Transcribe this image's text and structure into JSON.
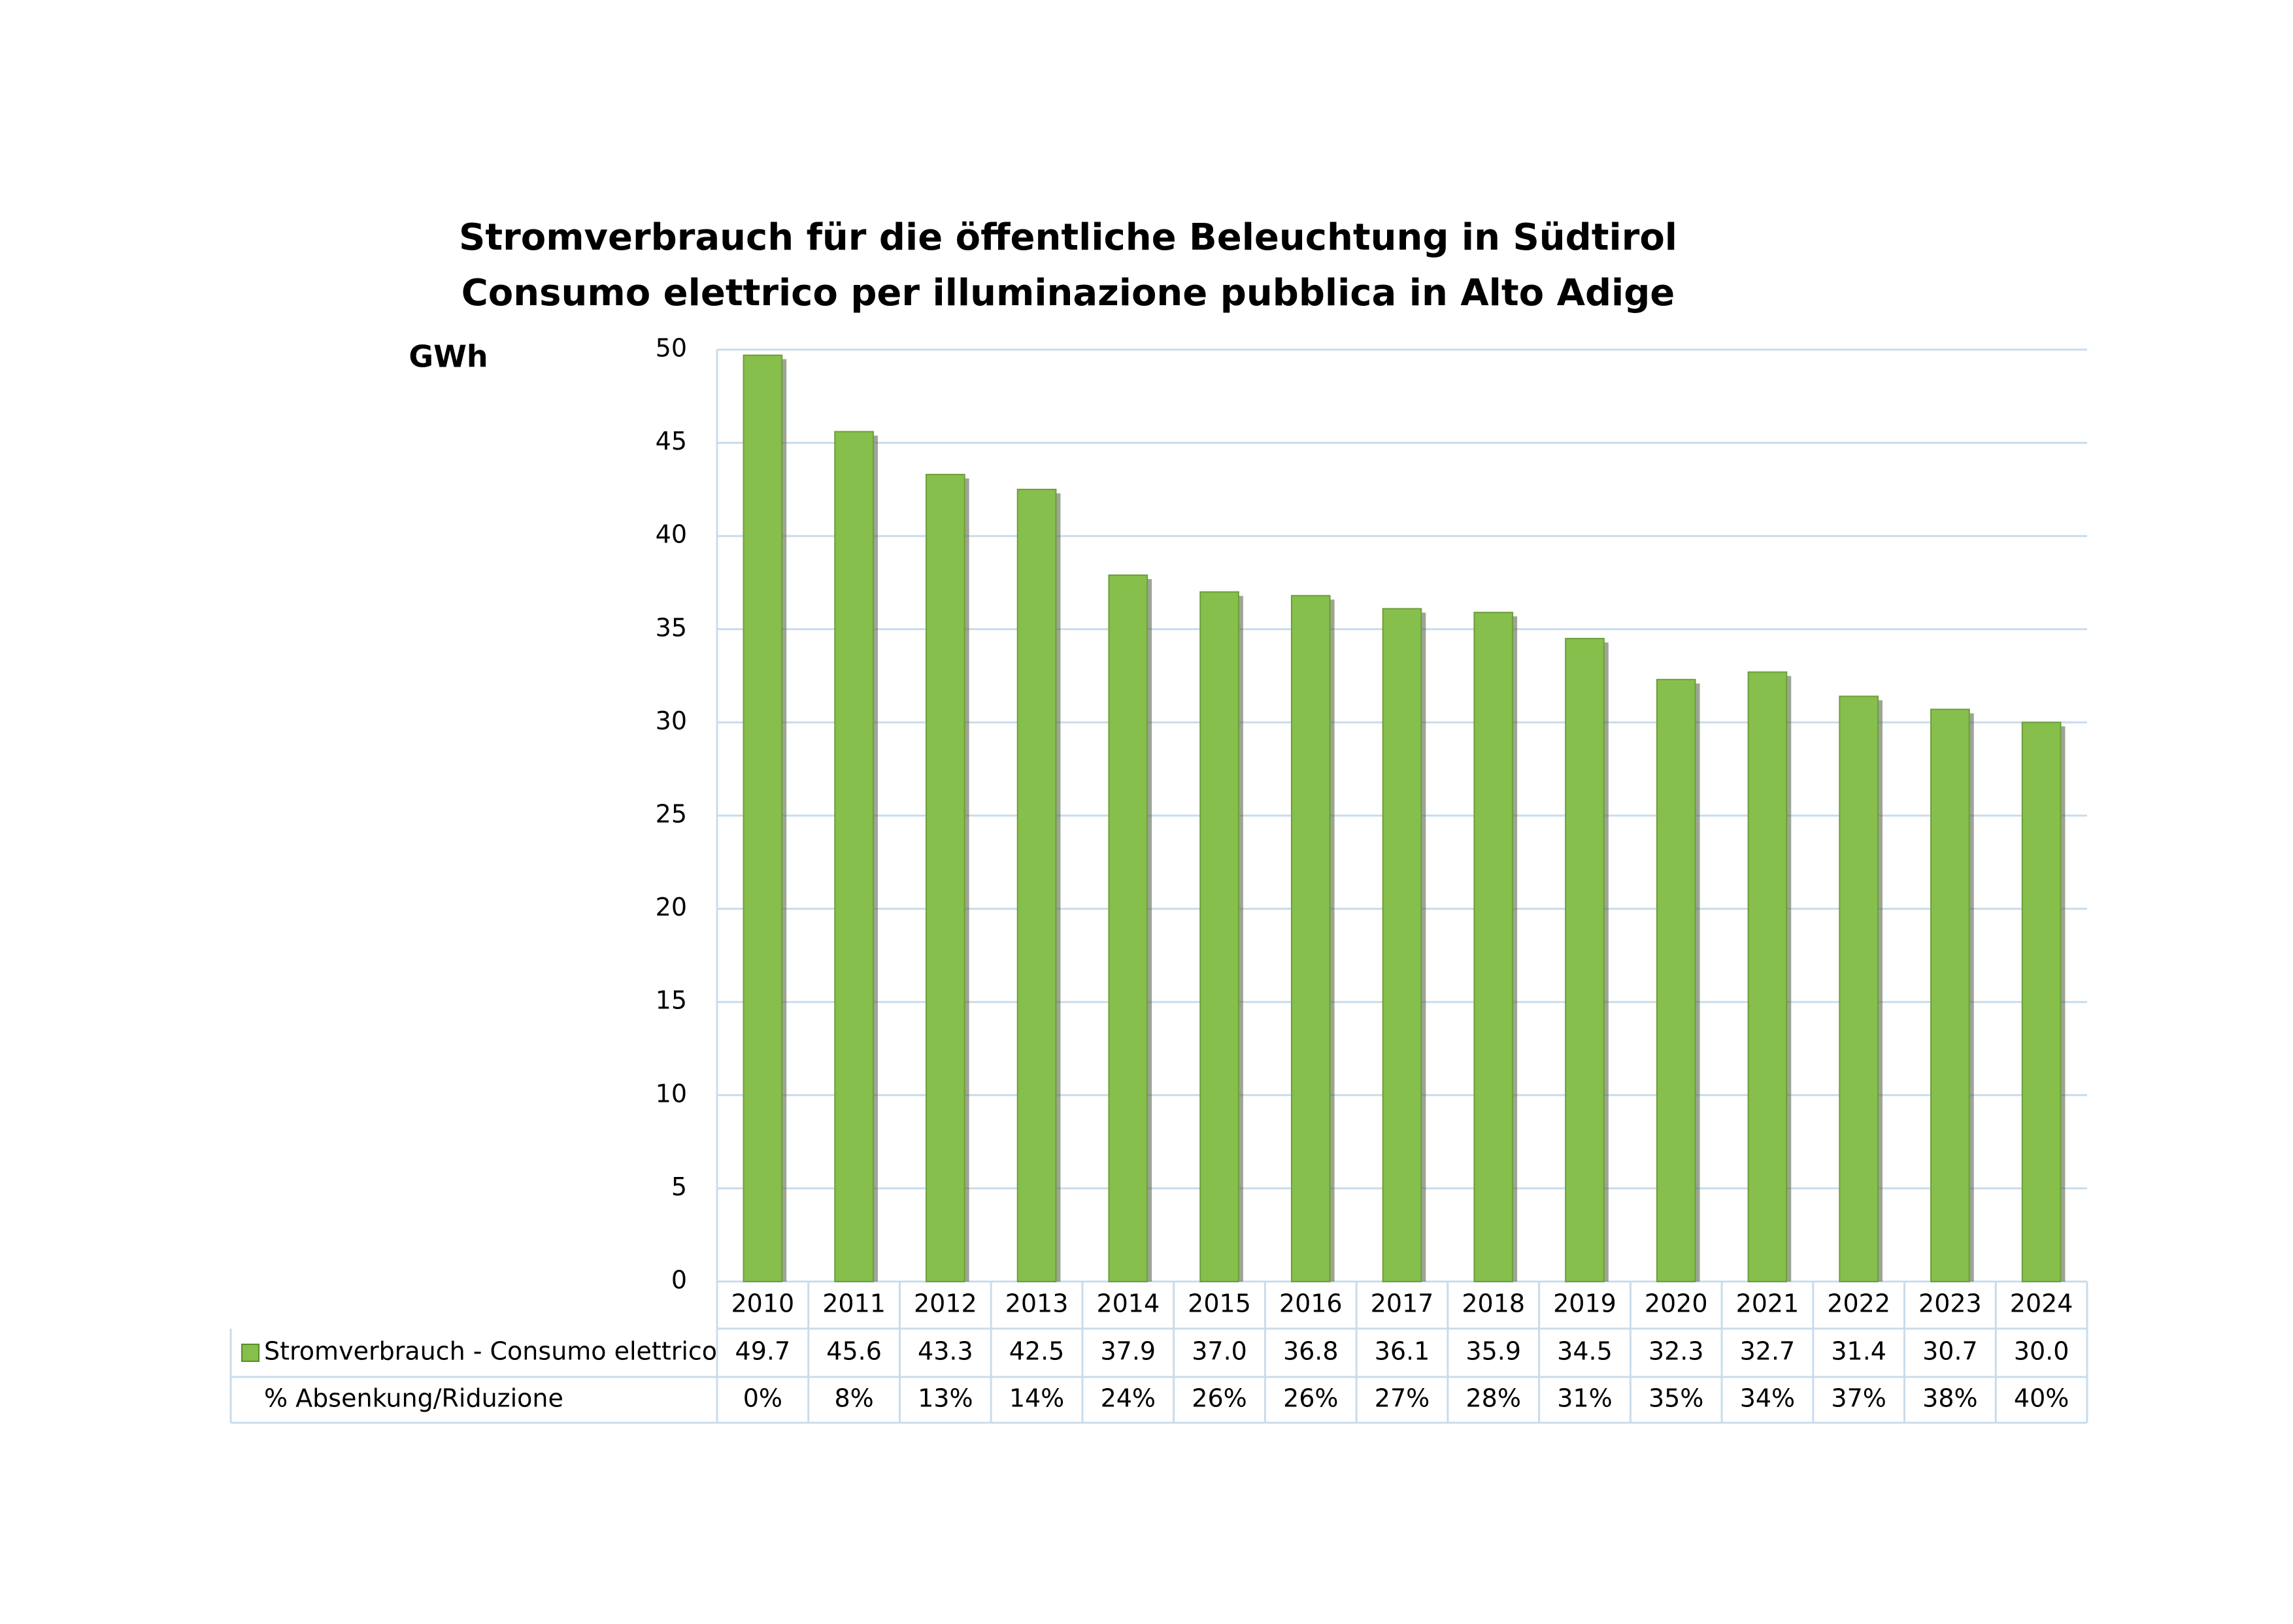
{
  "chart_data": {
    "type": "bar",
    "title": [
      "Stromverbrauch für die öffentliche Beleuchtung in Südtirol",
      "Consumo elettrico per illuminazione pubblica in Alto Adige"
    ],
    "y_label": "GWh",
    "categories": [
      "2010",
      "2011",
      "2012",
      "2013",
      "2014",
      "2015",
      "2016",
      "2017",
      "2018",
      "2019",
      "2020",
      "2021",
      "2022",
      "2023",
      "2024"
    ],
    "series": [
      {
        "name": "Stromverbrauch - Consumo elettrico",
        "color": "#86bf4b",
        "values": [
          49.7,
          45.6,
          43.3,
          42.5,
          37.9,
          37.0,
          36.8,
          36.1,
          35.9,
          34.5,
          32.3,
          32.7,
          31.4,
          30.7,
          30.0
        ],
        "value_labels": [
          "49.7",
          "45.6",
          "43.3",
          "42.5",
          "37.9",
          "37.0",
          "36.8",
          "36.1",
          "35.9",
          "34.5",
          "32.3",
          "32.7",
          "31.4",
          "30.7",
          "30.0"
        ]
      }
    ],
    "reduction": {
      "name": "% Absenkung/Riduzione",
      "values": [
        0,
        8,
        13,
        14,
        24,
        26,
        26,
        27,
        28,
        31,
        35,
        34,
        37,
        38,
        40
      ],
      "value_labels": [
        "0%",
        "8%",
        "13%",
        "14%",
        "24%",
        "26%",
        "26%",
        "27%",
        "28%",
        "31%",
        "35%",
        "34%",
        "37%",
        "38%",
        "40%"
      ]
    },
    "ylim": [
      0,
      50
    ],
    "yticks": [
      0,
      5,
      10,
      15,
      20,
      25,
      30,
      35,
      40,
      45,
      50
    ],
    "grid": true,
    "grid_color": "#c9dcec"
  }
}
